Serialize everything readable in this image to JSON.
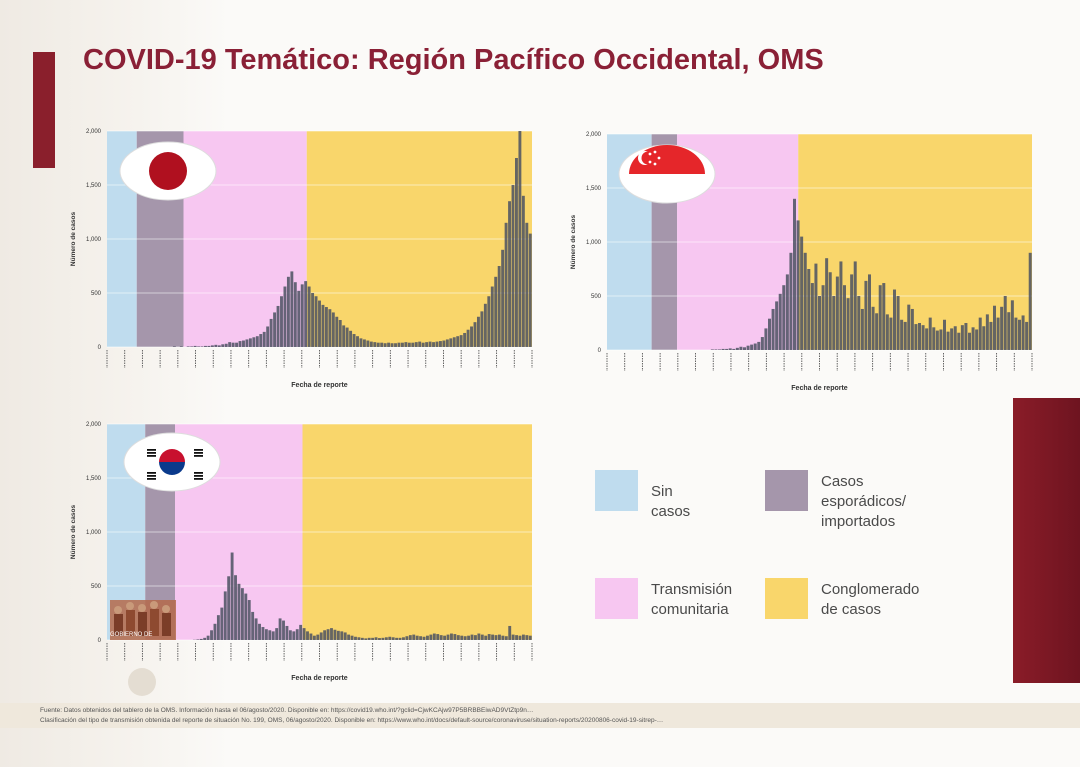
{
  "title": "COVID-19 Temático: Región Pacífico Occidental, OMS",
  "colors": {
    "sin_casos": "#bfdcee",
    "esporadicos": "#a596ab",
    "transmision": "#f7c7f1",
    "conglomerado": "#f9d66b",
    "bars": "#4b5162",
    "accent": "#8a2036"
  },
  "chart_data": [
    {
      "type": "bar",
      "flag": "japan-flag",
      "xlabel": "Fecha de reporte",
      "ylabel": "Número de casos",
      "ylim": [
        0,
        2000
      ],
      "yticks": [
        "0",
        "500",
        "1,000",
        "1,500",
        "2,000"
      ],
      "phases": [
        {
          "phase": "sin_casos",
          "start": 0,
          "end": 0.07
        },
        {
          "phase": "esporadicos",
          "start": 0.07,
          "end": 0.18
        },
        {
          "phase": "transmision",
          "start": 0.18,
          "end": 0.47
        },
        {
          "phase": "conglomerado",
          "start": 0.47,
          "end": 1.0
        }
      ],
      "values": [
        0,
        0,
        0,
        0,
        0,
        0,
        0,
        0,
        0,
        0,
        0,
        0,
        0,
        0,
        0,
        0,
        0,
        0,
        0,
        5,
        0,
        5,
        0,
        5,
        5,
        10,
        5,
        5,
        10,
        10,
        15,
        20,
        15,
        25,
        30,
        45,
        40,
        40,
        55,
        60,
        70,
        80,
        90,
        100,
        120,
        140,
        190,
        260,
        320,
        380,
        470,
        560,
        650,
        700,
        600,
        520,
        580,
        610,
        560,
        500,
        470,
        430,
        390,
        370,
        350,
        320,
        280,
        250,
        200,
        180,
        150,
        120,
        100,
        80,
        70,
        60,
        50,
        45,
        40,
        40,
        35,
        40,
        35,
        35,
        40,
        40,
        45,
        40,
        40,
        45,
        50,
        40,
        45,
        50,
        45,
        50,
        55,
        60,
        70,
        80,
        90,
        100,
        110,
        130,
        160,
        190,
        230,
        280,
        330,
        400,
        470,
        560,
        650,
        750,
        900,
        1150,
        1350,
        1500,
        1750,
        2000,
        1400,
        1150,
        1050
      ]
    },
    {
      "type": "bar",
      "flag": "singapore-flag",
      "xlabel": "Fecha de reporte",
      "ylabel": "Número de casos",
      "ylim": [
        0,
        2000
      ],
      "yticks": [
        "0",
        "500",
        "1,000",
        "1,500",
        "2,000"
      ],
      "phases": [
        {
          "phase": "sin_casos",
          "start": 0,
          "end": 0.105
        },
        {
          "phase": "esporadicos",
          "start": 0.105,
          "end": 0.165
        },
        {
          "phase": "transmision",
          "start": 0.165,
          "end": 0.45
        },
        {
          "phase": "conglomerado",
          "start": 0.45,
          "end": 1.0
        }
      ],
      "values": [
        0,
        0,
        0,
        0,
        0,
        0,
        0,
        0,
        0,
        0,
        0,
        0,
        0,
        0,
        0,
        0,
        0,
        0,
        0,
        0,
        0,
        0,
        0,
        0,
        0,
        0,
        0,
        0,
        0,
        5,
        5,
        5,
        10,
        10,
        15,
        10,
        20,
        30,
        25,
        40,
        50,
        60,
        75,
        120,
        200,
        290,
        380,
        450,
        520,
        600,
        700,
        900,
        1400,
        1200,
        1050,
        900,
        750,
        620,
        800,
        500,
        600,
        850,
        720,
        500,
        680,
        820,
        600,
        480,
        700,
        820,
        500,
        380,
        640,
        700,
        400,
        340,
        600,
        620,
        330,
        300,
        560,
        500,
        280,
        260,
        420,
        380,
        240,
        250,
        230,
        200,
        300,
        210,
        180,
        190,
        280,
        170,
        200,
        220,
        160,
        230,
        250,
        160,
        210,
        190,
        300,
        220,
        330,
        260,
        410,
        300,
        400,
        500,
        350,
        460,
        300,
        280,
        320,
        260,
        900
      ]
    },
    {
      "type": "bar",
      "flag": "south-korea-flag",
      "xlabel": "Fecha de reporte",
      "ylabel": "Número de casos",
      "ylim": [
        0,
        2000
      ],
      "yticks": [
        "0",
        "500",
        "1,000",
        "1,500",
        "2,000"
      ],
      "phases": [
        {
          "phase": "sin_casos",
          "start": 0,
          "end": 0.09
        },
        {
          "phase": "esporadicos",
          "start": 0.09,
          "end": 0.16
        },
        {
          "phase": "transmision",
          "start": 0.16,
          "end": 0.46
        },
        {
          "phase": "conglomerado",
          "start": 0.46,
          "end": 1.0
        }
      ],
      "values": [
        0,
        0,
        0,
        0,
        0,
        0,
        0,
        0,
        0,
        0,
        0,
        0,
        0,
        0,
        0,
        0,
        0,
        0,
        0,
        0,
        0,
        0,
        0,
        0,
        0,
        2,
        5,
        10,
        20,
        40,
        90,
        150,
        230,
        300,
        450,
        590,
        810,
        600,
        520,
        480,
        430,
        370,
        260,
        200,
        150,
        120,
        100,
        90,
        80,
        110,
        200,
        180,
        130,
        90,
        80,
        100,
        140,
        110,
        80,
        60,
        40,
        50,
        70,
        90,
        100,
        110,
        95,
        85,
        80,
        70,
        50,
        40,
        30,
        25,
        20,
        15,
        20,
        20,
        25,
        18,
        20,
        25,
        30,
        25,
        20,
        20,
        25,
        35,
        45,
        50,
        40,
        35,
        30,
        40,
        50,
        60,
        55,
        45,
        40,
        50,
        60,
        55,
        45,
        40,
        35,
        40,
        50,
        45,
        60,
        50,
        40,
        55,
        50,
        45,
        50,
        40,
        35,
        130,
        50,
        45,
        40,
        50,
        45,
        40
      ]
    }
  ],
  "legend": [
    {
      "key": "sin_casos",
      "label": "Sin casos"
    },
    {
      "key": "esporadicos",
      "label": "Casos esporádicos/\nimportados"
    },
    {
      "key": "transmision",
      "label": "Transmisión\ncomunitaria"
    },
    {
      "key": "conglomerado",
      "label": "Conglomerado\nde casos"
    }
  ],
  "footer": {
    "line1": "Fuente: Datos obtenidos del tablero de la OMS. Información hasta el 06/agosto/2020. Disponible en: https://covid19.who.int/?gclid=CjwKCAjw97P5BRBBEiwAD9VtZtp9n…",
    "line2": "Clasificación del tipo de transmisión obtenida del reporte de situación No. 199, OMS, 06/agosto/2020. Disponible en: https://www.who.int/docs/default-source/coronaviruse/situation-reports/20200806-covid-19-sitrep-…"
  },
  "seal_text": "GOBIERNO DE"
}
